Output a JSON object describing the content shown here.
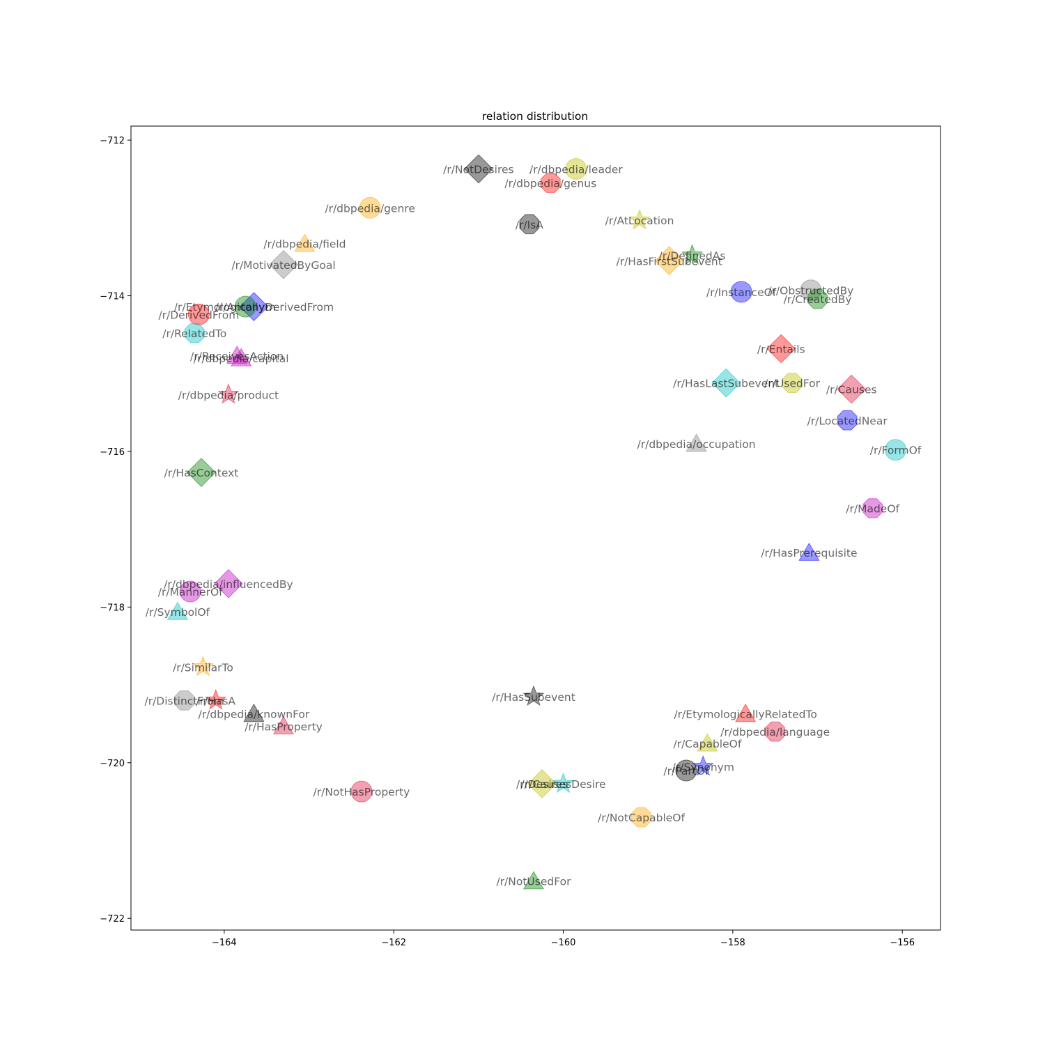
{
  "chart_data": {
    "type": "scatter",
    "title": "relation distribution",
    "xlabel": "",
    "ylabel": "",
    "xlim": [
      -165.1,
      -155.55
    ],
    "ylim": [
      -722.15,
      -711.82
    ],
    "xticks": [
      -164,
      -162,
      -160,
      -158,
      -156
    ],
    "yticks": [
      -712,
      -714,
      -716,
      -718,
      -720,
      -722
    ],
    "grid": false,
    "marker_alpha": 0.4,
    "colors": {
      "k": "#000000",
      "y": "#bfbf00",
      "r": "#ff0000",
      "orange": "#ffa500",
      "gray": "#808080",
      "green": "#008000",
      "blue": "#0000ff",
      "c": "#00bfbf",
      "m": "#bf00bf",
      "crimson": "#dc143c"
    },
    "points": [
      {
        "label": "/r/NotDesires",
        "x": -161.0,
        "y": -712.37,
        "marker": "diamond",
        "color": "k"
      },
      {
        "label": "/r/dbpedia/leader",
        "x": -159.85,
        "y": -712.37,
        "marker": "circle",
        "color": "y"
      },
      {
        "label": "/r/dbpedia/genus",
        "x": -160.15,
        "y": -712.55,
        "marker": "octagon",
        "color": "r"
      },
      {
        "label": "/r/dbpedia/genre",
        "x": -162.28,
        "y": -712.87,
        "marker": "circle",
        "color": "orange"
      },
      {
        "label": "/r/IsA",
        "x": -160.4,
        "y": -713.08,
        "marker": "octagon",
        "color": "k"
      },
      {
        "label": "/r/AtLocation",
        "x": -159.1,
        "y": -713.03,
        "marker": "star",
        "color": "y"
      },
      {
        "label": "/r/dbpedia/field",
        "x": -163.05,
        "y": -713.33,
        "marker": "triangle",
        "color": "orange"
      },
      {
        "label": "/r/MotivatedByGoal",
        "x": -163.3,
        "y": -713.6,
        "marker": "diamond",
        "color": "gray"
      },
      {
        "label": "/r/DefinedAs",
        "x": -158.48,
        "y": -713.48,
        "marker": "star",
        "color": "green"
      },
      {
        "label": "/r/HasFirstSubevent",
        "x": -158.75,
        "y": -713.55,
        "marker": "diamond",
        "color": "orange"
      },
      {
        "label": "/r/InstanceOf",
        "x": -157.9,
        "y": -713.95,
        "marker": "circle",
        "color": "blue"
      },
      {
        "label": "/r/ObstructedBy",
        "x": -157.08,
        "y": -713.93,
        "marker": "circle",
        "color": "gray"
      },
      {
        "label": "/r/CreatedBy",
        "x": -157.0,
        "y": -714.04,
        "marker": "octagon",
        "color": "green"
      },
      {
        "label": "/r/EtymologicallyDerivedFrom",
        "x": -163.65,
        "y": -714.14,
        "marker": "diamond",
        "color": "blue"
      },
      {
        "label": "/r/Antonym",
        "x": -163.75,
        "y": -714.14,
        "marker": "circle",
        "color": "green"
      },
      {
        "label": "/r/DerivedFrom",
        "x": -164.3,
        "y": -714.24,
        "marker": "circle",
        "color": "r"
      },
      {
        "label": "/r/RelatedTo",
        "x": -164.35,
        "y": -714.48,
        "marker": "octagon",
        "color": "c"
      },
      {
        "label": "/r/ReceivesAction",
        "x": -163.85,
        "y": -714.77,
        "marker": "triangle",
        "color": "m"
      },
      {
        "label": "/r/dbpedia/capital",
        "x": -163.8,
        "y": -714.8,
        "marker": "triangle",
        "color": "m"
      },
      {
        "label": "/r/Entails",
        "x": -157.43,
        "y": -714.68,
        "marker": "diamond",
        "color": "r"
      },
      {
        "label": "/r/HasLastSubevent",
        "x": -158.08,
        "y": -715.12,
        "marker": "diamond",
        "color": "c"
      },
      {
        "label": "/r/UsedFor",
        "x": -157.3,
        "y": -715.12,
        "marker": "octagon",
        "color": "y"
      },
      {
        "label": "/r/Causes",
        "x": -156.6,
        "y": -715.2,
        "marker": "diamond",
        "color": "crimson"
      },
      {
        "label": "/r/dbpedia/product",
        "x": -163.95,
        "y": -715.27,
        "marker": "star",
        "color": "crimson"
      },
      {
        "label": "/r/LocatedNear",
        "x": -156.65,
        "y": -715.6,
        "marker": "octagon",
        "color": "blue"
      },
      {
        "label": "/r/dbpedia/occupation",
        "x": -158.43,
        "y": -715.9,
        "marker": "triangle",
        "color": "gray"
      },
      {
        "label": "/r/FormOf",
        "x": -156.08,
        "y": -715.98,
        "marker": "circle",
        "color": "c"
      },
      {
        "label": "/r/HasContext",
        "x": -164.27,
        "y": -716.27,
        "marker": "diamond",
        "color": "green"
      },
      {
        "label": "/r/MadeOf",
        "x": -156.35,
        "y": -716.73,
        "marker": "octagon",
        "color": "m"
      },
      {
        "label": "/r/HasPrerequisite",
        "x": -157.1,
        "y": -717.3,
        "marker": "triangle",
        "color": "blue"
      },
      {
        "label": "/r/dbpedia/influencedBy",
        "x": -163.95,
        "y": -717.7,
        "marker": "diamond",
        "color": "m"
      },
      {
        "label": "/r/MannerOf",
        "x": -164.4,
        "y": -717.8,
        "marker": "circle",
        "color": "m"
      },
      {
        "label": "/r/SymbolOf",
        "x": -164.55,
        "y": -718.06,
        "marker": "triangle",
        "color": "c"
      },
      {
        "label": "/r/SimilarTo",
        "x": -164.25,
        "y": -718.77,
        "marker": "star",
        "color": "orange"
      },
      {
        "label": "/r/DistinctFrom",
        "x": -164.47,
        "y": -719.2,
        "marker": "octagon",
        "color": "gray"
      },
      {
        "label": "/r/HasA",
        "x": -164.1,
        "y": -719.2,
        "marker": "star",
        "color": "r"
      },
      {
        "label": "/r/HasSubevent",
        "x": -160.35,
        "y": -719.15,
        "marker": "star",
        "color": "k"
      },
      {
        "label": "/r/dbpedia/knownFor",
        "x": -163.65,
        "y": -719.37,
        "marker": "triangle",
        "color": "k"
      },
      {
        "label": "/r/EtymologicallyRelatedTo",
        "x": -157.85,
        "y": -719.37,
        "marker": "triangle",
        "color": "r"
      },
      {
        "label": "/r/HasProperty",
        "x": -163.3,
        "y": -719.53,
        "marker": "triangle",
        "color": "crimson"
      },
      {
        "label": "/r/dbpedia/language",
        "x": -157.5,
        "y": -719.6,
        "marker": "octagon",
        "color": "crimson"
      },
      {
        "label": "/r/CapableOf",
        "x": -158.3,
        "y": -719.75,
        "marker": "triangle",
        "color": "y"
      },
      {
        "label": "/r/PartOf",
        "x": -158.55,
        "y": -720.1,
        "marker": "circle",
        "color": "k"
      },
      {
        "label": "/r/Synonym",
        "x": -158.35,
        "y": -720.05,
        "marker": "star",
        "color": "blue"
      },
      {
        "label": "/r/Desires",
        "x": -160.25,
        "y": -720.27,
        "marker": "diamond",
        "color": "y"
      },
      {
        "label": "/r/CausesDesire",
        "x": -160.0,
        "y": -720.27,
        "marker": "star",
        "color": "c"
      },
      {
        "label": "/r/NotHasProperty",
        "x": -162.38,
        "y": -720.37,
        "marker": "circle",
        "color": "crimson"
      },
      {
        "label": "/r/NotCapableOf",
        "x": -159.08,
        "y": -720.7,
        "marker": "octagon",
        "color": "orange"
      },
      {
        "label": "/r/NotUsedFor",
        "x": -160.35,
        "y": -721.52,
        "marker": "triangle",
        "color": "green"
      }
    ]
  }
}
